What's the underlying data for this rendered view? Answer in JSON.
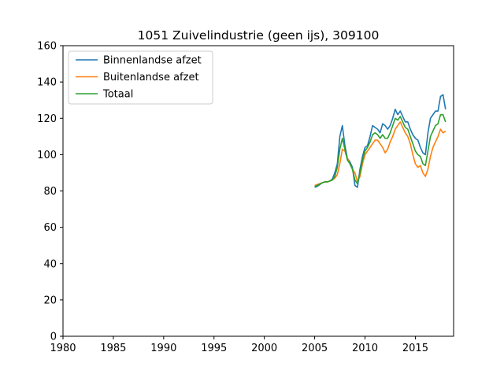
{
  "chart_data": {
    "type": "line",
    "title": "1051 Zuivelindustrie (geen ijs), 309100",
    "xlabel": "",
    "ylabel": "",
    "xlim": [
      1980,
      2018.8
    ],
    "ylim": [
      0,
      160
    ],
    "xticks": [
      1980,
      1985,
      1990,
      1995,
      2000,
      2005,
      2010,
      2015
    ],
    "yticks": [
      0,
      20,
      40,
      60,
      80,
      100,
      120,
      140,
      160
    ],
    "grid": false,
    "legend_position": "top-left",
    "series": [
      {
        "name": "Binnenlandse afzet",
        "color": "#1f77b4",
        "x": [
          2005.0,
          2005.25,
          2005.5,
          2005.75,
          2006.0,
          2006.25,
          2006.5,
          2006.75,
          2007.0,
          2007.25,
          2007.5,
          2007.75,
          2008.0,
          2008.25,
          2008.5,
          2008.75,
          2009.0,
          2009.25,
          2009.5,
          2009.75,
          2010.0,
          2010.25,
          2010.5,
          2010.75,
          2011.0,
          2011.25,
          2011.5,
          2011.75,
          2012.0,
          2012.25,
          2012.5,
          2012.75,
          2013.0,
          2013.25,
          2013.5,
          2013.75,
          2014.0,
          2014.25,
          2014.5,
          2014.75,
          2015.0,
          2015.25,
          2015.5,
          2015.75,
          2016.0,
          2016.25,
          2016.5,
          2016.75,
          2017.0,
          2017.25,
          2017.5,
          2017.75,
          2018.0
        ],
        "y": [
          82,
          82.5,
          83.5,
          84.5,
          85,
          85,
          85.5,
          86.5,
          90,
          95,
          110,
          116,
          105,
          98,
          96,
          93,
          83,
          82,
          92,
          99,
          104,
          105,
          110,
          116,
          115,
          114,
          112,
          117,
          116,
          114,
          116,
          120,
          125,
          122,
          124,
          121,
          118,
          118,
          114,
          111,
          109,
          108,
          104,
          101,
          100,
          112,
          120,
          122,
          124,
          124,
          132,
          133,
          125
        ]
      },
      {
        "name": "Buitenlandse afzet",
        "color": "#ff7f0e",
        "x": [
          2005.0,
          2005.25,
          2005.5,
          2005.75,
          2006.0,
          2006.25,
          2006.5,
          2006.75,
          2007.0,
          2007.25,
          2007.5,
          2007.75,
          2008.0,
          2008.25,
          2008.5,
          2008.75,
          2009.0,
          2009.25,
          2009.5,
          2009.75,
          2010.0,
          2010.25,
          2010.5,
          2010.75,
          2011.0,
          2011.25,
          2011.5,
          2011.75,
          2012.0,
          2012.25,
          2012.5,
          2012.75,
          2013.0,
          2013.25,
          2013.5,
          2013.75,
          2014.0,
          2014.25,
          2014.5,
          2014.75,
          2015.0,
          2015.25,
          2015.5,
          2015.75,
          2016.0,
          2016.25,
          2016.5,
          2016.75,
          2017.0,
          2017.25,
          2017.5,
          2017.75,
          2018.0
        ],
        "y": [
          83,
          83.5,
          84,
          84.5,
          85,
          85,
          85.5,
          86,
          87,
          89,
          95,
          103,
          102,
          98,
          95,
          92,
          90,
          85,
          88,
          95,
          100,
          102,
          104,
          106,
          108,
          108,
          106,
          104,
          101,
          103,
          107,
          110,
          114,
          116,
          118,
          115,
          112,
          110,
          106,
          100,
          95,
          93,
          94,
          90,
          88,
          92,
          99,
          104,
          107,
          110,
          114,
          112,
          113
        ]
      },
      {
        "name": "Totaal",
        "color": "#2ca02c",
        "x": [
          2005.0,
          2005.25,
          2005.5,
          2005.75,
          2006.0,
          2006.25,
          2006.5,
          2006.75,
          2007.0,
          2007.25,
          2007.5,
          2007.75,
          2008.0,
          2008.25,
          2008.5,
          2008.75,
          2009.0,
          2009.25,
          2009.5,
          2009.75,
          2010.0,
          2010.25,
          2010.5,
          2010.75,
          2011.0,
          2011.25,
          2011.5,
          2011.75,
          2012.0,
          2012.25,
          2012.5,
          2012.75,
          2013.0,
          2013.25,
          2013.5,
          2013.75,
          2014.0,
          2014.25,
          2014.5,
          2014.75,
          2015.0,
          2015.25,
          2015.5,
          2015.75,
          2016.0,
          2016.25,
          2016.5,
          2016.75,
          2017.0,
          2017.25,
          2017.5,
          2017.75,
          2018.0
        ],
        "y": [
          82.5,
          83,
          83.8,
          84.5,
          85,
          85,
          85.5,
          86,
          88,
          93,
          103,
          109,
          103,
          97,
          95,
          92,
          86,
          84,
          90,
          97,
          102,
          104,
          107,
          111,
          112,
          111,
          109,
          111,
          109,
          109,
          112,
          116,
          120,
          119,
          121,
          118,
          115,
          114,
          110,
          106,
          102,
          100,
          99,
          95,
          94,
          102,
          110,
          113,
          116,
          117,
          122,
          122,
          118
        ]
      }
    ]
  }
}
